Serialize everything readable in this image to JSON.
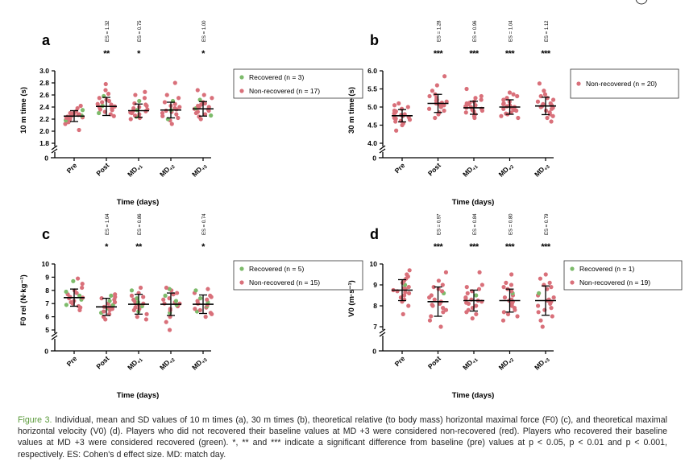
{
  "colors": {
    "recovered": "#7dbb6b",
    "non_recovered": "#d9707a",
    "axis": "#000000",
    "caption_label": "#5a9a3a"
  },
  "chart_data": [
    {
      "panel": "a",
      "type": "scatter",
      "ylabel": "10 m time (s)",
      "xlabel": "Time (days)",
      "categories": [
        "Pre",
        "Post",
        "MD+1",
        "MD+2",
        "MD+3"
      ],
      "ylim": [
        1.8,
        3.0
      ],
      "yticks": [
        1.8,
        2.0,
        2.2,
        2.4,
        2.6,
        2.8,
        3.0
      ],
      "ybreak_zero": "0",
      "mean": [
        2.25,
        2.41,
        2.34,
        2.35,
        2.37
      ],
      "sd": [
        0.09,
        0.15,
        0.11,
        0.13,
        0.12
      ],
      "stars": [
        "",
        "**",
        "*",
        "",
        "*"
      ],
      "es": [
        "",
        "ES = 1.32",
        "ES = 0.75",
        "",
        "ES = 1.00"
      ],
      "legend": [
        {
          "label": "Recovered (n = 3)",
          "color": "recovered"
        },
        {
          "label": "Non-recovered (n = 17)",
          "color": "non_recovered"
        }
      ],
      "points": [
        [
          2.12,
          2.15,
          2.18,
          2.2,
          2.21,
          2.22,
          2.23,
          2.24,
          2.25,
          2.26,
          2.27,
          2.28,
          2.29,
          2.3,
          2.31,
          2.33,
          2.35,
          2.38,
          2.02,
          2.42
        ],
        [
          2.25,
          2.28,
          2.3,
          2.32,
          2.35,
          2.36,
          2.38,
          2.4,
          2.41,
          2.42,
          2.44,
          2.45,
          2.48,
          2.5,
          2.52,
          2.55,
          2.58,
          2.62,
          2.68,
          2.78
        ],
        [
          2.2,
          2.22,
          2.24,
          2.26,
          2.28,
          2.3,
          2.31,
          2.33,
          2.34,
          2.35,
          2.36,
          2.38,
          2.4,
          2.42,
          2.44,
          2.46,
          2.5,
          2.55,
          2.6,
          2.65
        ],
        [
          2.12,
          2.18,
          2.2,
          2.22,
          2.25,
          2.28,
          2.3,
          2.32,
          2.34,
          2.35,
          2.36,
          2.38,
          2.4,
          2.42,
          2.45,
          2.48,
          2.5,
          2.55,
          2.6,
          2.8
        ],
        [
          2.2,
          2.24,
          2.26,
          2.28,
          2.3,
          2.32,
          2.34,
          2.36,
          2.37,
          2.38,
          2.39,
          2.4,
          2.42,
          2.44,
          2.46,
          2.48,
          2.52,
          2.55,
          2.6,
          2.68
        ]
      ],
      "recovered_idx": [
        2,
        9,
        16
      ]
    },
    {
      "panel": "b",
      "type": "scatter",
      "ylabel": "30 m time (s)",
      "xlabel": "Time (days)",
      "categories": [
        "Pre",
        "Post",
        "MD+1",
        "MD+2",
        "MD+3"
      ],
      "ylim": [
        4.0,
        6.0
      ],
      "yticks": [
        4.0,
        4.5,
        5.0,
        5.5,
        6.0
      ],
      "ybreak_zero": "0",
      "mean": [
        4.76,
        5.1,
        4.98,
        5.0,
        5.03
      ],
      "sd": [
        0.17,
        0.25,
        0.18,
        0.2,
        0.24
      ],
      "stars": [
        "",
        "***",
        "***",
        "***",
        "***"
      ],
      "es": [
        "",
        "ES = 1.28",
        "ES = 0.96",
        "ES = 1.04",
        "ES = 1.12"
      ],
      "legend": [
        {
          "label": "Non-recovered (n = 20)",
          "color": "non_recovered"
        }
      ],
      "points": [
        [
          4.35,
          4.5,
          4.55,
          4.6,
          4.62,
          4.65,
          4.68,
          4.7,
          4.72,
          4.75,
          4.78,
          4.8,
          4.82,
          4.85,
          4.88,
          4.9,
          4.95,
          5.0,
          5.05,
          5.1
        ],
        [
          4.7,
          4.8,
          4.85,
          4.9,
          4.95,
          5.0,
          5.02,
          5.05,
          5.08,
          5.1,
          5.12,
          5.15,
          5.18,
          5.2,
          5.25,
          5.3,
          5.35,
          5.45,
          5.6,
          5.85
        ],
        [
          4.7,
          4.75,
          4.8,
          4.85,
          4.88,
          4.9,
          4.92,
          4.95,
          4.98,
          5.0,
          5.02,
          5.05,
          5.08,
          5.1,
          5.12,
          5.15,
          5.2,
          5.25,
          5.3,
          5.5
        ],
        [
          4.7,
          4.75,
          4.8,
          4.82,
          4.85,
          4.9,
          4.92,
          4.95,
          4.98,
          5.0,
          5.02,
          5.05,
          5.08,
          5.1,
          5.15,
          5.2,
          5.25,
          5.3,
          5.35,
          5.4
        ],
        [
          4.6,
          4.7,
          4.75,
          4.8,
          4.85,
          4.9,
          4.95,
          4.98,
          5.0,
          5.02,
          5.05,
          5.08,
          5.1,
          5.15,
          5.2,
          5.25,
          5.3,
          5.35,
          5.45,
          5.65
        ]
      ],
      "recovered_idx": []
    },
    {
      "panel": "c",
      "type": "scatter",
      "ylabel": "F0 rel (N·kg⁻¹)",
      "xlabel": "Time (days)",
      "categories": [
        "Pre",
        "Post",
        "MD+1",
        "MD+2",
        "MD+3"
      ],
      "ylim": [
        5,
        10
      ],
      "yticks": [
        5,
        6,
        7,
        8,
        9,
        10
      ],
      "ybreak_zero": "0",
      "mean": [
        7.45,
        6.75,
        6.95,
        6.95,
        6.95
      ],
      "sd": [
        0.65,
        0.65,
        0.75,
        0.85,
        0.7
      ],
      "stars": [
        "",
        "*",
        "**",
        "",
        "*"
      ],
      "es": [
        "",
        "ES = 1.04",
        "ES = 0.86",
        "",
        "ES = 0.74"
      ],
      "legend": [
        {
          "label": "Recovered (n = 5)",
          "color": "recovered"
        },
        {
          "label": "Non-recovered (n = 15)",
          "color": "non_recovered"
        }
      ],
      "points": [
        [
          6.5,
          6.7,
          6.8,
          6.9,
          7.0,
          7.1,
          7.2,
          7.3,
          7.4,
          7.45,
          7.5,
          7.6,
          7.7,
          7.8,
          7.9,
          8.0,
          8.2,
          8.5,
          8.7,
          8.9
        ],
        [
          5.8,
          6.0,
          6.2,
          6.3,
          6.4,
          6.5,
          6.6,
          6.65,
          6.7,
          6.75,
          6.8,
          6.9,
          7.0,
          7.1,
          7.2,
          7.3,
          7.4,
          7.5,
          7.6,
          7.7
        ],
        [
          5.8,
          6.0,
          6.2,
          6.4,
          6.5,
          6.6,
          6.7,
          6.8,
          6.9,
          7.0,
          7.0,
          7.1,
          7.2,
          7.3,
          7.4,
          7.5,
          7.6,
          7.8,
          8.0,
          8.2
        ],
        [
          5.0,
          5.6,
          6.0,
          6.3,
          6.5,
          6.6,
          6.8,
          6.9,
          7.0,
          7.0,
          7.1,
          7.2,
          7.3,
          7.4,
          7.6,
          7.7,
          7.8,
          8.0,
          8.1,
          8.2
        ],
        [
          6.0,
          6.2,
          6.3,
          6.4,
          6.5,
          6.6,
          6.7,
          6.8,
          6.9,
          7.0,
          7.0,
          7.1,
          7.2,
          7.3,
          7.4,
          7.5,
          7.6,
          7.8,
          8.0,
          8.1
        ]
      ],
      "recovered_idx": [
        3,
        7,
        11,
        14,
        18
      ]
    },
    {
      "panel": "d",
      "type": "scatter",
      "ylabel": "V0 (m·s⁻¹)",
      "xlabel": "Time (days)",
      "categories": [
        "Pre",
        "Post",
        "MD+1",
        "MD+2",
        "MD+3"
      ],
      "ylim": [
        7,
        10
      ],
      "yticks": [
        7,
        8,
        9,
        10
      ],
      "ybreak_zero": "0",
      "mean": [
        8.75,
        8.2,
        8.25,
        8.25,
        8.25
      ],
      "sd": [
        0.5,
        0.7,
        0.5,
        0.55,
        0.7
      ],
      "stars": [
        "",
        "***",
        "***",
        "***",
        "***"
      ],
      "es": [
        "",
        "ES = 0.97",
        "ES = 0.84",
        "ES = 0.80",
        "ES = 0.79"
      ],
      "legend": [
        {
          "label": "Recovered (n = 1)",
          "color": "recovered"
        },
        {
          "label": "Non-recovered (n = 19)",
          "color": "non_recovered"
        }
      ],
      "points": [
        [
          7.6,
          8.0,
          8.2,
          8.3,
          8.4,
          8.5,
          8.6,
          8.65,
          8.7,
          8.75,
          8.8,
          8.85,
          8.9,
          9.0,
          9.1,
          9.2,
          9.3,
          9.4,
          9.5,
          9.7
        ],
        [
          7.0,
          7.3,
          7.5,
          7.7,
          7.8,
          7.9,
          8.0,
          8.05,
          8.1,
          8.2,
          8.3,
          8.4,
          8.5,
          8.6,
          8.7,
          8.8,
          8.9,
          9.0,
          9.2,
          9.6
        ],
        [
          7.4,
          7.6,
          7.7,
          7.8,
          7.9,
          8.0,
          8.1,
          8.15,
          8.2,
          8.25,
          8.3,
          8.35,
          8.4,
          8.5,
          8.6,
          8.7,
          8.8,
          8.9,
          9.0,
          9.6
        ],
        [
          7.3,
          7.5,
          7.6,
          7.7,
          7.8,
          7.9,
          8.0,
          8.1,
          8.2,
          8.25,
          8.3,
          8.4,
          8.5,
          8.6,
          8.7,
          8.8,
          8.9,
          9.0,
          9.1,
          9.5
        ],
        [
          7.0,
          7.3,
          7.5,
          7.7,
          7.8,
          7.9,
          8.0,
          8.1,
          8.2,
          8.25,
          8.3,
          8.4,
          8.5,
          8.6,
          8.8,
          8.9,
          9.0,
          9.1,
          9.3,
          9.5
        ]
      ],
      "recovered_idx": [
        13
      ]
    }
  ],
  "caption": {
    "label": "Figure 3.",
    "text": " Individual, mean and SD values of 10 m times (a), 30 m times (b), theoretical relative (to body mass) horizontal maximal force (F0) (c), and theoretical maximal horizontal velocity (V0) (d). Players who did not recovered their baseline values at MD +3 were considered non-recovered (red). Players who recovered their baseline values at MD +3 were considered recovered (green). *, ** and *** indicate a significant difference from baseline (pre) values at p < 0.05, p < 0.01 and p < 0.001, respectively. ES: Cohen's d effect size. MD: match day."
  }
}
